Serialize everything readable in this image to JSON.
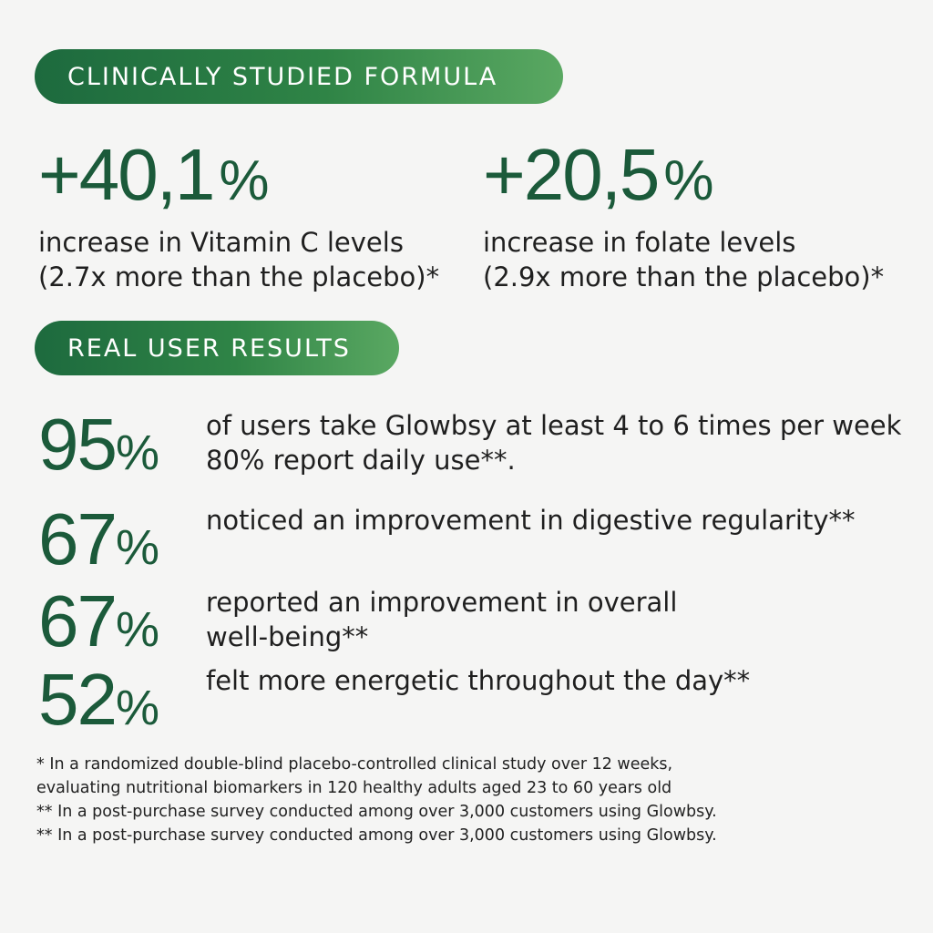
{
  "section1": {
    "title": "CLINICALLY STUDIED FORMULA",
    "stats": [
      {
        "value": "+40,1",
        "unit": "%",
        "line1": "increase in Vitamin C levels",
        "line2": "(2.7x more than the placebo)*"
      },
      {
        "value": "+20,5",
        "unit": "%",
        "line1": "increase in folate levels",
        "line2": "(2.9x more than the placebo)*"
      }
    ]
  },
  "section2": {
    "title": "REAL USER RESULTS",
    "rows": [
      {
        "value": "95",
        "unit": "%",
        "line1": "of users take Glowbsy at least 4 to 6 times per week",
        "line2": "80% report daily use**."
      },
      {
        "value": "67",
        "unit": "%",
        "line1": "noticed an improvement in digestive regularity**",
        "line2": ""
      },
      {
        "value": "67",
        "unit": "%",
        "line1": "reported an improvement in overall",
        "line2": "well-being**"
      },
      {
        "value": "52",
        "unit": "%",
        "line1": "felt more energetic throughout the day**",
        "line2": ""
      }
    ]
  },
  "footnotes": [
    "* In a randomized double-blind placebo-controlled clinical study over 12 weeks,",
    "evaluating nutritional biomarkers in 120 healthy adults aged 23 to 60 years old",
    "** In a post-purchase survey conducted among over 3,000 customers using Glowbsy.",
    "** In a post-purchase survey conducted among over 3,000 customers using Glowbsy."
  ],
  "colors": {
    "accent_green": "#1b5a3a",
    "pill_start": "#1d6a3e",
    "pill_end": "#5aa862",
    "background": "#f5f5f4"
  }
}
